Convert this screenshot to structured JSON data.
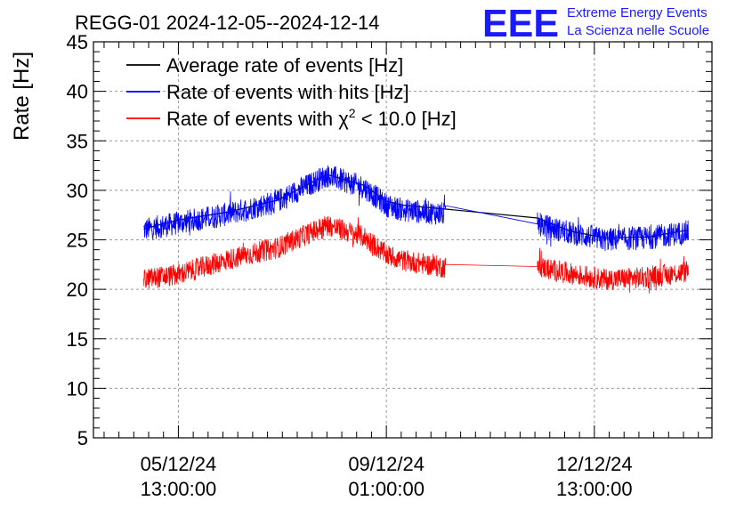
{
  "header": {
    "title": "REGG-01 2024-12-05--2024-12-14",
    "logo_text": "EEE",
    "logo_line1": "Extreme Energy Events",
    "logo_line2": "La Scienza nelle Scuole"
  },
  "colors": {
    "average": "#000000",
    "hits": "#0000ff",
    "chi2": "#ff0000",
    "logo": "#1a1aff"
  },
  "chart_data": {
    "type": "line",
    "title": "REGG-01 2024-12-05--2024-12-14",
    "ylabel": "Rate [Hz]",
    "xlabel": "",
    "ylim": [
      5,
      45
    ],
    "yticks": [
      "5",
      "10",
      "15",
      "20",
      "25",
      "30",
      "35",
      "40",
      "45"
    ],
    "xticks": [
      {
        "line1": "05/12/24",
        "line2": "13:00:00",
        "t": 0
      },
      {
        "line1": "09/12/24",
        "line2": "01:00:00",
        "t": 84
      },
      {
        "line1": "12/12/24",
        "line2": "13:00:00",
        "t": 168
      }
    ],
    "grid": true,
    "legend_position": "top-left",
    "legend": [
      {
        "label": "Average rate of events [Hz]"
      },
      {
        "label_pre": "Rate of events with ",
        "label_chi": "χ",
        "label_sup": "2",
        "label_post": " < 10.0 [Hz]",
        "label": "Rate of events with χ2 < 10.0 [Hz]"
      },
      {
        "label": "Rate of events with hits [Hz]"
      }
    ],
    "series": [
      {
        "name": "Average rate of events [Hz]",
        "color": "#000000",
        "noise": 0,
        "x": [
          -14,
          0,
          20,
          40,
          60,
          75,
          84,
          91,
          108,
          145,
          158,
          172,
          190,
          206
        ],
        "y": [
          26.1,
          27.0,
          27.8,
          29.0,
          31.6,
          30.5,
          28.9,
          28.5,
          28.1,
          27.2,
          25.9,
          25.2,
          25.3,
          26.0
        ]
      },
      {
        "name": "Rate of events with hits [Hz]",
        "color": "#0000ff",
        "noise": 1.2,
        "gap": [
          108,
          145
        ],
        "x": [
          -14,
          0,
          20,
          40,
          60,
          75,
          84,
          91,
          108,
          145,
          158,
          172,
          190,
          206
        ],
        "y": [
          26.0,
          26.7,
          27.6,
          28.9,
          31.5,
          30.3,
          28.5,
          28.0,
          27.6,
          26.6,
          25.7,
          25.0,
          25.2,
          25.8
        ]
      },
      {
        "name": "Rate of events with χ2 < 10.0 [Hz]",
        "color": "#ff0000",
        "noise": 1.1,
        "gap": [
          108,
          145
        ],
        "x": [
          -14,
          0,
          20,
          40,
          60,
          75,
          84,
          91,
          108,
          145,
          158,
          172,
          190,
          206
        ],
        "y": [
          21.0,
          21.5,
          23.0,
          24.2,
          26.5,
          25.3,
          23.5,
          22.9,
          22.2,
          22.3,
          21.6,
          21.0,
          21.2,
          21.8
        ]
      }
    ]
  }
}
